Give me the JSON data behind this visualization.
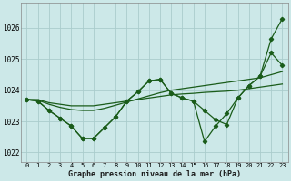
{
  "xlabel": "Graphe pression niveau de la mer (hPa)",
  "bg_color": "#cce8e8",
  "grid_color": "#aacccc",
  "line_color": "#1a5c1a",
  "xlim": [
    -0.5,
    23.5
  ],
  "ylim": [
    1021.7,
    1026.8
  ],
  "yticks": [
    1022,
    1023,
    1024,
    1025,
    1026
  ],
  "xticks": [
    0,
    1,
    2,
    3,
    4,
    5,
    6,
    7,
    8,
    9,
    10,
    11,
    12,
    13,
    14,
    15,
    16,
    17,
    18,
    19,
    20,
    21,
    22,
    23
  ],
  "series_zigzag": [
    1023.7,
    1023.65,
    1023.35,
    1023.1,
    1022.85,
    1022.45,
    1022.45,
    1022.8,
    1023.15,
    1023.65,
    1023.95,
    1024.3,
    1024.35,
    1023.9,
    1023.75,
    1023.65,
    1023.35,
    1023.05,
    1022.9,
    1023.75,
    1024.15,
    1024.45,
    1025.2,
    1024.8
  ],
  "series_steep": [
    1023.7,
    1023.65,
    1023.35,
    1023.1,
    1022.85,
    1022.45,
    1022.45,
    1022.8,
    1023.15,
    1023.65,
    1023.95,
    1024.3,
    1024.35,
    1023.9,
    1023.75,
    1023.65,
    1022.35,
    1022.85,
    1023.25,
    1023.75,
    1024.15,
    1024.45,
    1025.65,
    1026.3
  ],
  "series_smooth1": [
    1023.7,
    1023.7,
    1023.6,
    1023.55,
    1023.5,
    1023.5,
    1023.5,
    1023.55,
    1023.6,
    1023.65,
    1023.7,
    1023.75,
    1023.8,
    1023.85,
    1023.88,
    1023.9,
    1023.93,
    1023.95,
    1023.97,
    1024.0,
    1024.05,
    1024.1,
    1024.15,
    1024.2
  ],
  "series_smooth2": [
    1023.7,
    1023.68,
    1023.55,
    1023.45,
    1023.38,
    1023.35,
    1023.35,
    1023.42,
    1023.52,
    1023.62,
    1023.72,
    1023.82,
    1023.92,
    1024.0,
    1024.05,
    1024.1,
    1024.15,
    1024.2,
    1024.25,
    1024.3,
    1024.35,
    1024.4,
    1024.5,
    1024.6
  ]
}
